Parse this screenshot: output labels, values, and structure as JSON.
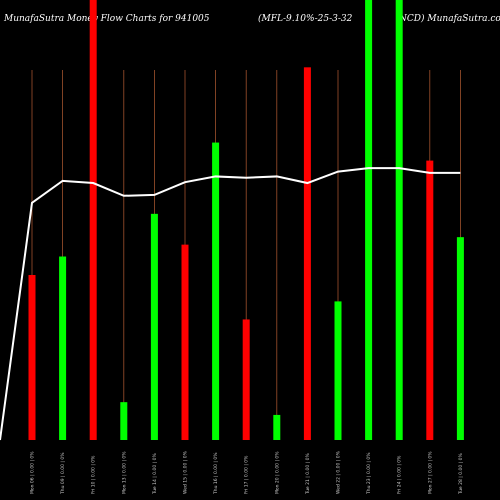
{
  "header": {
    "left": "MunafaSutra  Money Flow  Charts for 941005",
    "middle": "(MFL-9.10%-25-3-32",
    "right": "-NCD) MunafaSutra.com"
  },
  "colors": {
    "background": "#000000",
    "up": "#00ff00",
    "down": "#ff0000",
    "guide": "#a0522d",
    "line": "#ffffff",
    "label": "#cccccc"
  },
  "chart_data": {
    "type": "bar",
    "ylim": [
      0,
      100
    ],
    "bars": [
      {
        "value": 37.5,
        "dir": "down",
        "label": "Mon 06 | 0.00 | 0%"
      },
      {
        "value": 41.7,
        "dir": "up",
        "label": "Thu 09 | 0.00 | 0%"
      },
      {
        "value": 100,
        "dir": "down",
        "label": "Fri 10 | 0.00 | 0%"
      },
      {
        "value": 8.6,
        "dir": "up",
        "label": "Mon 13 | 0.00 | 0%"
      },
      {
        "value": 51.4,
        "dir": "up",
        "label": "Tue 14 | 0.00 | 0%"
      },
      {
        "value": 44.4,
        "dir": "down",
        "label": "Wed 15 | 0.00 | 0%"
      },
      {
        "value": 67.6,
        "dir": "up",
        "label": "Thu 16 | 0.00 | 0%"
      },
      {
        "value": 27.4,
        "dir": "down",
        "label": "Fri 17 | 0.00 | 0%"
      },
      {
        "value": 5.7,
        "dir": "up",
        "label": "Mon 20 | 0.00 | 0%"
      },
      {
        "value": 84.7,
        "dir": "down",
        "label": "Tue 21 | 0.00 | 0%"
      },
      {
        "value": 31.5,
        "dir": "up",
        "label": "Wed 22 | 0.00 | 0%"
      },
      {
        "value": 100,
        "dir": "up",
        "label": "Thu 23 | 0.00 | 0%"
      },
      {
        "value": 100,
        "dir": "up",
        "label": "Fri 24 | 0.00 | 0%"
      },
      {
        "value": 63.5,
        "dir": "down",
        "label": "Mon 27 | 0.00 | 0%"
      },
      {
        "value": 46.1,
        "dir": "up",
        "label": "Tue 28 | 0.00 | 0%"
      }
    ],
    "line": [
      0,
      53.9,
      58.9,
      58.4,
      55.5,
      55.7,
      58.6,
      59.9,
      59.6,
      59.9,
      58.4,
      61.0,
      61.8,
      61.8,
      60.7,
      60.7
    ]
  }
}
